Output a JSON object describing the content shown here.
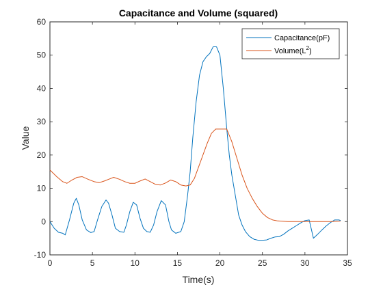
{
  "chart_data": {
    "type": "line",
    "title": "Capacitance and Volume (squared)",
    "xlabel": "Time(s)",
    "ylabel": "Value",
    "xlim": [
      0,
      35
    ],
    "ylim": [
      -10,
      60
    ],
    "xticks": [
      0,
      5,
      10,
      15,
      20,
      25,
      30,
      35
    ],
    "yticks": [
      -10,
      0,
      10,
      20,
      30,
      40,
      50,
      60
    ],
    "grid": false,
    "legend_position": "top-right",
    "series": [
      {
        "name": "Capacitance(pF)",
        "legend_text": "Capacitance(pF)",
        "color": "#0072BD",
        "x": [
          0,
          0.5,
          1,
          1.5,
          1.8,
          2.3,
          2.8,
          3.1,
          3.4,
          3.8,
          4.3,
          4.8,
          5.2,
          5.6,
          6.1,
          6.6,
          6.9,
          7.3,
          7.7,
          8.2,
          8.7,
          9.0,
          9.4,
          9.8,
          10.2,
          10.6,
          11.0,
          11.4,
          11.8,
          12.2,
          12.6,
          13.1,
          13.6,
          14.0,
          14.3,
          14.8,
          15.4,
          15.8,
          16.2,
          16.5,
          16.8,
          17.2,
          17.6,
          18.0,
          18.4,
          18.8,
          19.2,
          19.6,
          20.0,
          20.4,
          20.8,
          21.1,
          21.4,
          21.8,
          22.2,
          22.6,
          23.0,
          23.5,
          24.0,
          24.5,
          25.0,
          25.5,
          26.0,
          26.5,
          27.0,
          27.5,
          28.0,
          28.5,
          29.0,
          29.5,
          30.0,
          30.5,
          31.0,
          31.5,
          32.0,
          32.5,
          33.0,
          33.5,
          34.0,
          34.2
        ],
        "y": [
          0,
          -2,
          -3.2,
          -3.5,
          -4,
          0.5,
          5.5,
          7,
          5,
          0.5,
          -2.5,
          -3.3,
          -3,
          0.5,
          4.5,
          6.5,
          5.5,
          2,
          -2,
          -3,
          -3.2,
          -1,
          3,
          5.8,
          5,
          1,
          -2,
          -3,
          -3.2,
          -1,
          3,
          6.3,
          5,
          0,
          -2.5,
          -3.5,
          -3,
          0,
          8,
          15,
          25,
          36,
          44,
          48,
          49.5,
          50.5,
          52.5,
          52.5,
          50,
          40,
          28,
          20,
          14,
          8,
          2,
          -1,
          -3,
          -4.5,
          -5.3,
          -5.6,
          -5.6,
          -5.5,
          -5,
          -4.6,
          -4.5,
          -3.8,
          -2.8,
          -2,
          -1.2,
          -0.4,
          0.3,
          0.5,
          -5,
          -3.8,
          -2.5,
          -1.3,
          -0.3,
          0.5,
          0.5,
          0.3
        ],
        "y_note": ""
      },
      {
        "name": "Volume(L^2)",
        "legend_text": "Volume(L",
        "legend_sup": "2",
        "legend_after": ")",
        "color": "#D95319",
        "x": [
          0,
          0.8,
          1.5,
          2,
          2.6,
          3.2,
          3.8,
          4.5,
          5.2,
          5.8,
          6.4,
          7.0,
          7.5,
          8.2,
          8.8,
          9.4,
          10.0,
          10.6,
          11.2,
          11.8,
          12.4,
          13.0,
          13.6,
          14.2,
          14.8,
          15.4,
          16.0,
          16.5,
          17.0,
          17.5,
          18.0,
          18.5,
          19.0,
          19.5,
          19.8,
          20.3,
          20.8,
          21.4,
          22.0,
          22.6,
          23.2,
          23.8,
          24.4,
          25.0,
          25.6,
          26.2,
          26.8,
          27.4,
          28.0,
          29.0,
          30.0,
          31.0,
          32.0,
          33.0,
          34.0,
          34.2
        ],
        "y": [
          15.5,
          13.5,
          12,
          11.5,
          12.5,
          13.3,
          13.5,
          12.7,
          12,
          11.7,
          12.2,
          12.8,
          13.3,
          12.7,
          12,
          11.5,
          11.5,
          12.2,
          12.8,
          12,
          11.2,
          11,
          11.6,
          12.5,
          12,
          11,
          10.7,
          11,
          13,
          16.5,
          20,
          23.5,
          26.5,
          27.8,
          27.8,
          27.8,
          27.8,
          24,
          19,
          14,
          10,
          7,
          4.5,
          2.5,
          1.2,
          0.5,
          0.2,
          0.1,
          0,
          0,
          0,
          0,
          0,
          0,
          0.1,
          0.2
        ]
      }
    ]
  }
}
